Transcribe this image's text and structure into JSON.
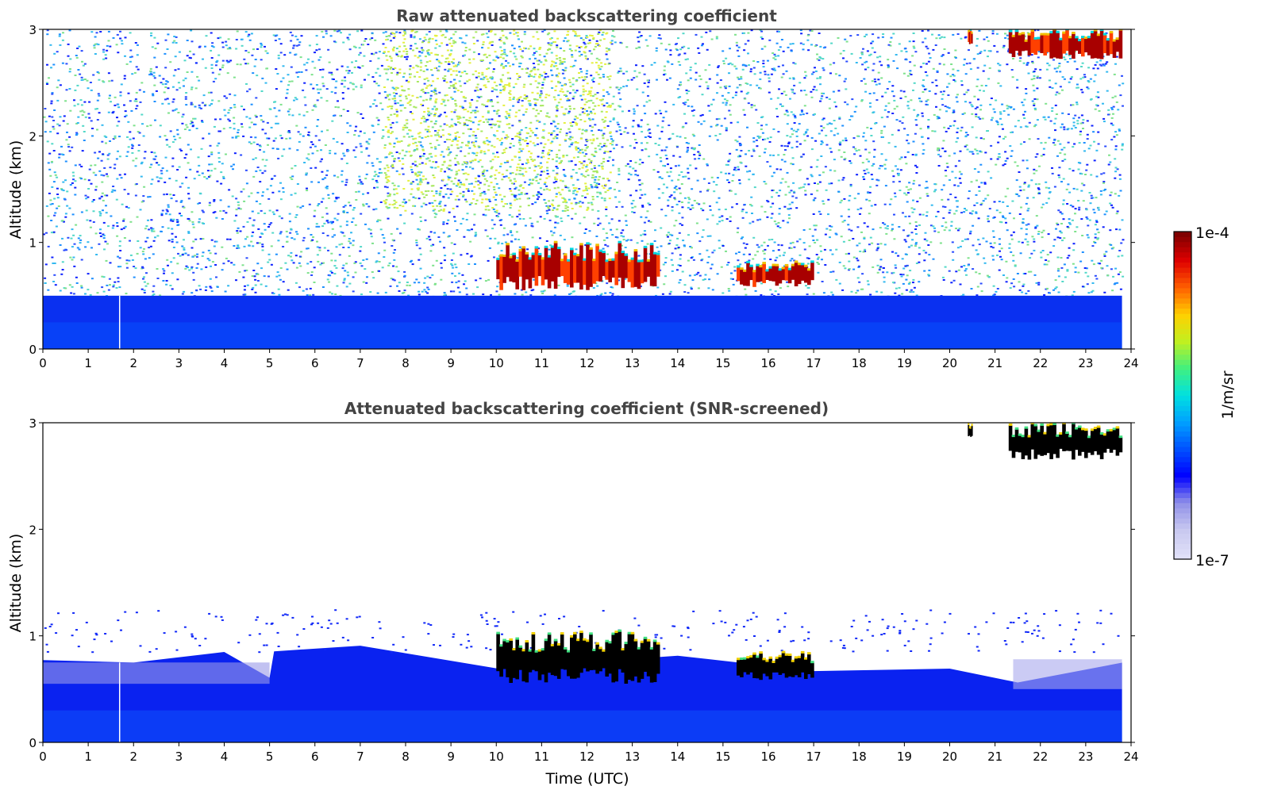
{
  "chart_data": [
    {
      "type": "heatmap",
      "title": "Raw attenuated backscattering coefficient",
      "xlabel": "",
      "ylabel": "Altitude (km)",
      "xlim": [
        0,
        24
      ],
      "ylim": [
        0,
        3
      ],
      "xticks": [
        0,
        1,
        2,
        3,
        4,
        5,
        6,
        7,
        8,
        9,
        10,
        11,
        12,
        13,
        14,
        15,
        16,
        17,
        18,
        19,
        20,
        21,
        22,
        23,
        24
      ],
      "yticks": [
        0,
        1,
        2,
        3
      ],
      "data_end_hour": 23.8,
      "features": {
        "surface_layer_top_km": 0.5,
        "noise": "high",
        "clouds": [
          {
            "name": "morning-cloud",
            "start": 10.0,
            "end": 13.6,
            "base_km": 0.55,
            "top_km": 1.0
          },
          {
            "name": "afternoon-cloud",
            "start": 15.3,
            "end": 17.0,
            "base_km": 0.58,
            "top_km": 0.82
          },
          {
            "name": "upper-cloud-a",
            "start": 20.4,
            "end": 20.5,
            "base_km": 2.85,
            "top_km": 3.0
          },
          {
            "name": "upper-cloud-b",
            "start": 21.3,
            "end": 23.8,
            "base_km": 2.72,
            "top_km": 3.0
          }
        ]
      }
    },
    {
      "type": "heatmap",
      "title": "Attenuated backscattering coefficient (SNR-screened)",
      "xlabel": "Time (UTC)",
      "ylabel": "Altitude (km)",
      "xlim": [
        0,
        24
      ],
      "ylim": [
        0,
        3
      ],
      "xticks": [
        0,
        1,
        2,
        3,
        4,
        5,
        6,
        7,
        8,
        9,
        10,
        11,
        12,
        13,
        14,
        15,
        16,
        17,
        18,
        19,
        20,
        21,
        22,
        23,
        24
      ],
      "yticks": [
        0,
        1,
        2,
        3
      ],
      "data_end_hour": 23.8,
      "features": {
        "boundary_layer_top_km": [
          [
            0,
            0.75
          ],
          [
            2,
            0.75
          ],
          [
            4,
            0.85
          ],
          [
            5,
            0.6
          ],
          [
            5.1,
            0.85
          ],
          [
            7,
            0.9
          ],
          [
            10,
            0.7
          ],
          [
            14,
            0.8
          ],
          [
            17,
            0.65
          ],
          [
            20,
            0.7
          ],
          [
            21.5,
            0.55
          ],
          [
            23.8,
            0.75
          ]
        ],
        "noise": "screened",
        "clouds": [
          {
            "name": "morning-cloud",
            "start": 10.0,
            "end": 13.6,
            "base_km": 0.55,
            "top_km": 1.05
          },
          {
            "name": "afternoon-cloud",
            "start": 15.3,
            "end": 17.0,
            "base_km": 0.58,
            "top_km": 0.85
          },
          {
            "name": "upper-cloud-a",
            "start": 20.4,
            "end": 20.5,
            "base_km": 2.85,
            "top_km": 3.0
          },
          {
            "name": "upper-cloud-b",
            "start": 21.3,
            "end": 23.8,
            "base_km": 2.65,
            "top_km": 3.0
          }
        ]
      }
    }
  ],
  "colorbar": {
    "label": "1/m/sr",
    "min_label": "1e-7",
    "max_label": "1e-4",
    "scale": "log",
    "colormap": [
      "#e0e0f8",
      "#c8c8f0",
      "#9090e8",
      "#0000ff",
      "#0050ff",
      "#00a0ff",
      "#00e0e0",
      "#40f080",
      "#c0f020",
      "#ffd000",
      "#ff6000",
      "#e00000",
      "#800000"
    ]
  },
  "colors": {
    "background_noise": [
      "#ffffff",
      "#ffffff",
      "#ffffff",
      "#2a4bff",
      "#0d20ff",
      "#1d8fff",
      "#33b9f0",
      "#52d8c8",
      "#7ee28c"
    ]
  }
}
